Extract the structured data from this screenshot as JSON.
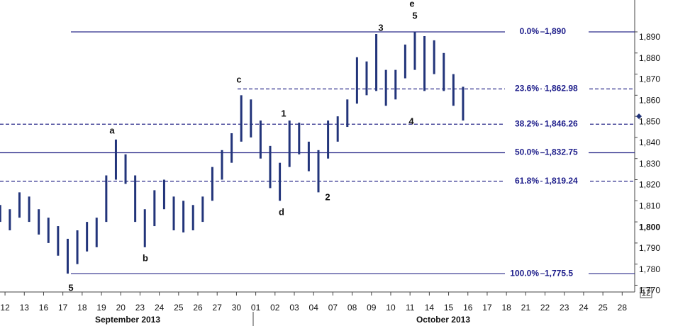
{
  "chart_data": {
    "type": "hlbar",
    "series": [
      {
        "color": "#22347a",
        "x": [
          -0.25,
          0.25,
          0.75,
          1.25,
          1.75,
          2.25,
          2.75,
          3.25,
          3.75,
          4.25,
          4.75,
          5.25,
          5.75,
          6.25,
          6.75,
          7.25,
          7.75,
          8.25,
          8.75,
          9.25,
          9.75,
          10.25,
          10.75,
          11.25,
          11.75,
          12.25,
          12.75,
          13.25,
          13.75,
          14.25,
          14.75,
          15.25,
          15.75,
          16.25,
          16.75,
          17.25,
          17.75,
          18.25,
          18.75,
          19.25,
          19.75,
          20.25,
          20.75,
          21.25,
          21.75,
          22.25,
          22.75,
          23.25,
          23.75
        ],
        "high": [
          1808,
          1806,
          1814,
          1812,
          1806,
          1802,
          1798,
          1792,
          1796,
          1800,
          1802,
          1822,
          1839,
          1832,
          1822,
          1806,
          1815,
          1820,
          1812,
          1810,
          1808,
          1812,
          1826,
          1834,
          1842,
          1860,
          1858,
          1848,
          1836,
          1828,
          1848,
          1847,
          1838,
          1834,
          1848,
          1850,
          1858,
          1878,
          1876,
          1889,
          1872,
          1872,
          1884,
          1890,
          1888,
          1886,
          1880,
          1870,
          1864
        ],
        "low": [
          1800,
          1796,
          1802,
          1800,
          1794,
          1790,
          1784,
          1775.5,
          1780,
          1786,
          1788,
          1800,
          1820,
          1818,
          1800,
          1788,
          1798,
          1806,
          1796,
          1795,
          1796,
          1800,
          1810,
          1820,
          1828,
          1838,
          1840,
          1830,
          1816,
          1810,
          1826,
          1832,
          1824,
          1814,
          1830,
          1838,
          1845,
          1856,
          1860,
          1862,
          1855,
          1858,
          1868,
          1872,
          1862,
          1870,
          1862,
          1855,
          1848
        ]
      }
    ],
    "xlim": [
      -0.26,
      32.65
    ],
    "xticks": [
      {
        "value": 0,
        "label": "12"
      },
      {
        "value": 1,
        "label": "13"
      },
      {
        "value": 2,
        "label": "16"
      },
      {
        "value": 3,
        "label": "17"
      },
      {
        "value": 4,
        "label": "18"
      },
      {
        "value": 5,
        "label": "19"
      },
      {
        "value": 6,
        "label": "20"
      },
      {
        "value": 7,
        "label": "23"
      },
      {
        "value": 8,
        "label": "24"
      },
      {
        "value": 9,
        "label": "25"
      },
      {
        "value": 10,
        "label": "26"
      },
      {
        "value": 11,
        "label": "27"
      },
      {
        "value": 12,
        "label": "30"
      },
      {
        "value": 13,
        "label": "01"
      },
      {
        "value": 14,
        "label": "02"
      },
      {
        "value": 15,
        "label": "03"
      },
      {
        "value": 16,
        "label": "04"
      },
      {
        "value": 17,
        "label": "07"
      },
      {
        "value": 18,
        "label": "08"
      },
      {
        "value": 19,
        "label": "09"
      },
      {
        "value": 20,
        "label": "10"
      },
      {
        "value": 21,
        "label": "11"
      },
      {
        "value": 22,
        "label": "14"
      },
      {
        "value": 23,
        "label": "15"
      },
      {
        "value": 24,
        "label": "16"
      },
      {
        "value": 25,
        "label": "17"
      },
      {
        "value": 26,
        "label": "18"
      },
      {
        "value": 27,
        "label": "21"
      },
      {
        "value": 28,
        "label": "22"
      },
      {
        "value": 29,
        "label": "23"
      },
      {
        "value": 30,
        "label": "24"
      },
      {
        "value": 31,
        "label": "25"
      },
      {
        "value": 32,
        "label": "28"
      }
    ],
    "months": [
      "September 2013",
      "October 2013"
    ],
    "ylim": [
      1766.8,
      1905.1
    ],
    "yticks": [
      {
        "value": 1770,
        "label": "1,770"
      },
      {
        "value": 1780,
        "label": "1,780"
      },
      {
        "value": 1790,
        "label": "1,790"
      },
      {
        "value": 1800,
        "label": "1,800"
      },
      {
        "value": 1810,
        "label": "1,810"
      },
      {
        "value": 1820,
        "label": "1,820"
      },
      {
        "value": 1830,
        "label": "1,830"
      },
      {
        "value": 1840,
        "label": "1,840"
      },
      {
        "value": 1850,
        "label": "1,850"
      },
      {
        "value": 1860,
        "label": "1,860"
      },
      {
        "value": 1870,
        "label": "1,870"
      },
      {
        "value": 1880,
        "label": "1,880"
      },
      {
        "value": 1890,
        "label": "1,890"
      }
    ],
    "fib_levels": [
      {
        "pct": "0.0%",
        "value": 1890,
        "label": "1,890"
      },
      {
        "pct": "23.6%",
        "value": 1862.98,
        "label": "1,862.98"
      },
      {
        "pct": "38.2%",
        "value": 1846.26,
        "label": "1,846.26"
      },
      {
        "pct": "50.0%",
        "value": 1832.75,
        "label": "1,832.75"
      },
      {
        "pct": "61.8%",
        "value": 1819.24,
        "label": "1,819.24"
      },
      {
        "pct": "100.0%",
        "value": 1775.5,
        "label": "1,775.5"
      }
    ],
    "last_price": 1850,
    "annotations": [
      "5",
      "a",
      "b",
      "c",
      "d",
      "1",
      "2",
      "3",
      "4",
      "5",
      "e"
    ],
    "corner_label": "12"
  }
}
